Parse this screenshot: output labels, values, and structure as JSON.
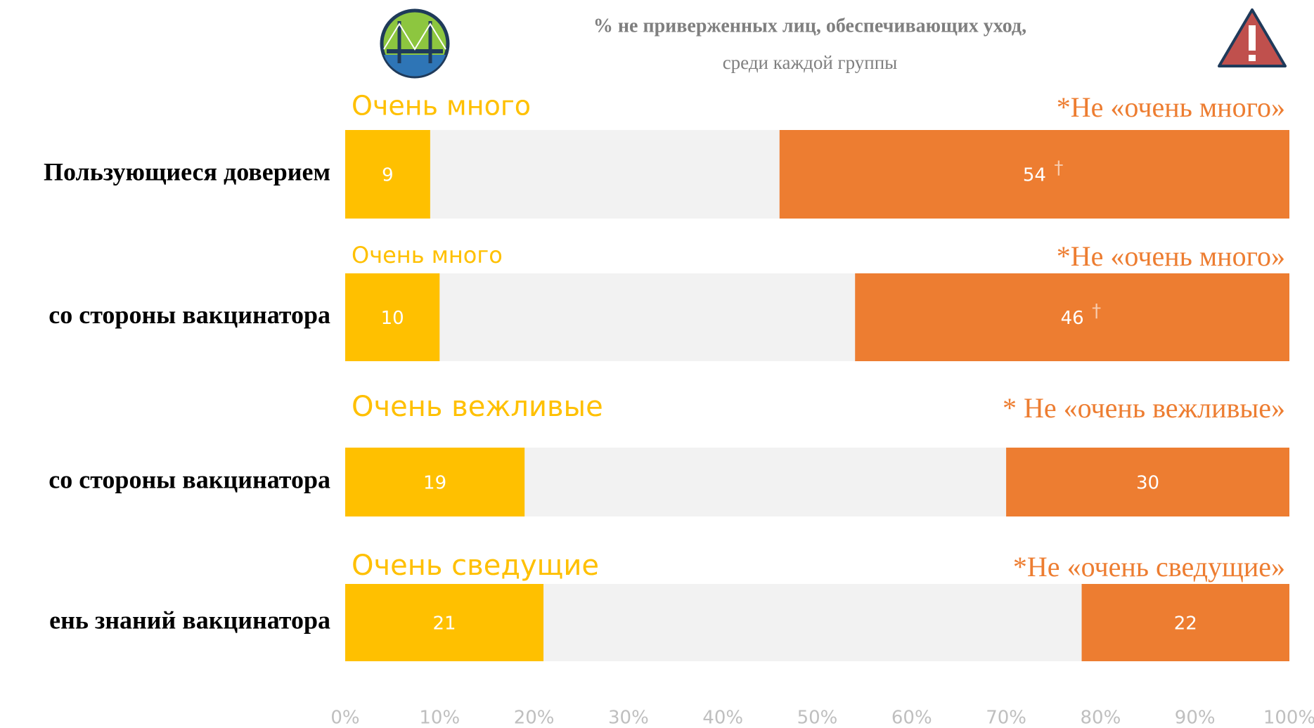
{
  "chart_data": {
    "type": "bar",
    "title": "% не приверженных лиц, обеспечивающих уход,",
    "subtitle": "среди каждой группы",
    "categories": [
      "Пользующиеся доверием",
      "со стороны вакцинатора",
      "со стороны вакцинатора",
      "ень знаний вакцинатора"
    ],
    "left_labels": [
      "Очень много",
      "Очень много",
      "Очень вежливые",
      "Очень сведущие"
    ],
    "right_labels": [
      "*Не «очень много»",
      "*Не «очень много»",
      "* Не «очень вежливые»",
      "*Не «очень сведущие»"
    ],
    "notes": [
      "†",
      "†",
      null,
      null
    ],
    "series": [
      {
        "color": "#ffc000",
        "values": [
          9,
          10,
          19,
          21
        ],
        "align": "left"
      },
      {
        "color": "#ed7d31",
        "values": [
          54,
          46,
          30,
          22
        ],
        "align": "right"
      }
    ],
    "background_color": "#f2f2f2",
    "xlim": [
      0,
      100
    ],
    "xticks": [
      {
        "value": 0,
        "label": "0%"
      },
      {
        "value": 10,
        "label": "10%"
      },
      {
        "value": 20,
        "label": "20%"
      },
      {
        "value": 30,
        "label": "30%"
      },
      {
        "value": 40,
        "label": "40%"
      },
      {
        "value": 50,
        "label": "50%"
      },
      {
        "value": 60,
        "label": "60%"
      },
      {
        "value": 70,
        "label": "70%"
      },
      {
        "value": 80,
        "label": "80%"
      },
      {
        "value": 90,
        "label": "90%"
      },
      {
        "value": 100,
        "label": "100%"
      }
    ]
  }
}
